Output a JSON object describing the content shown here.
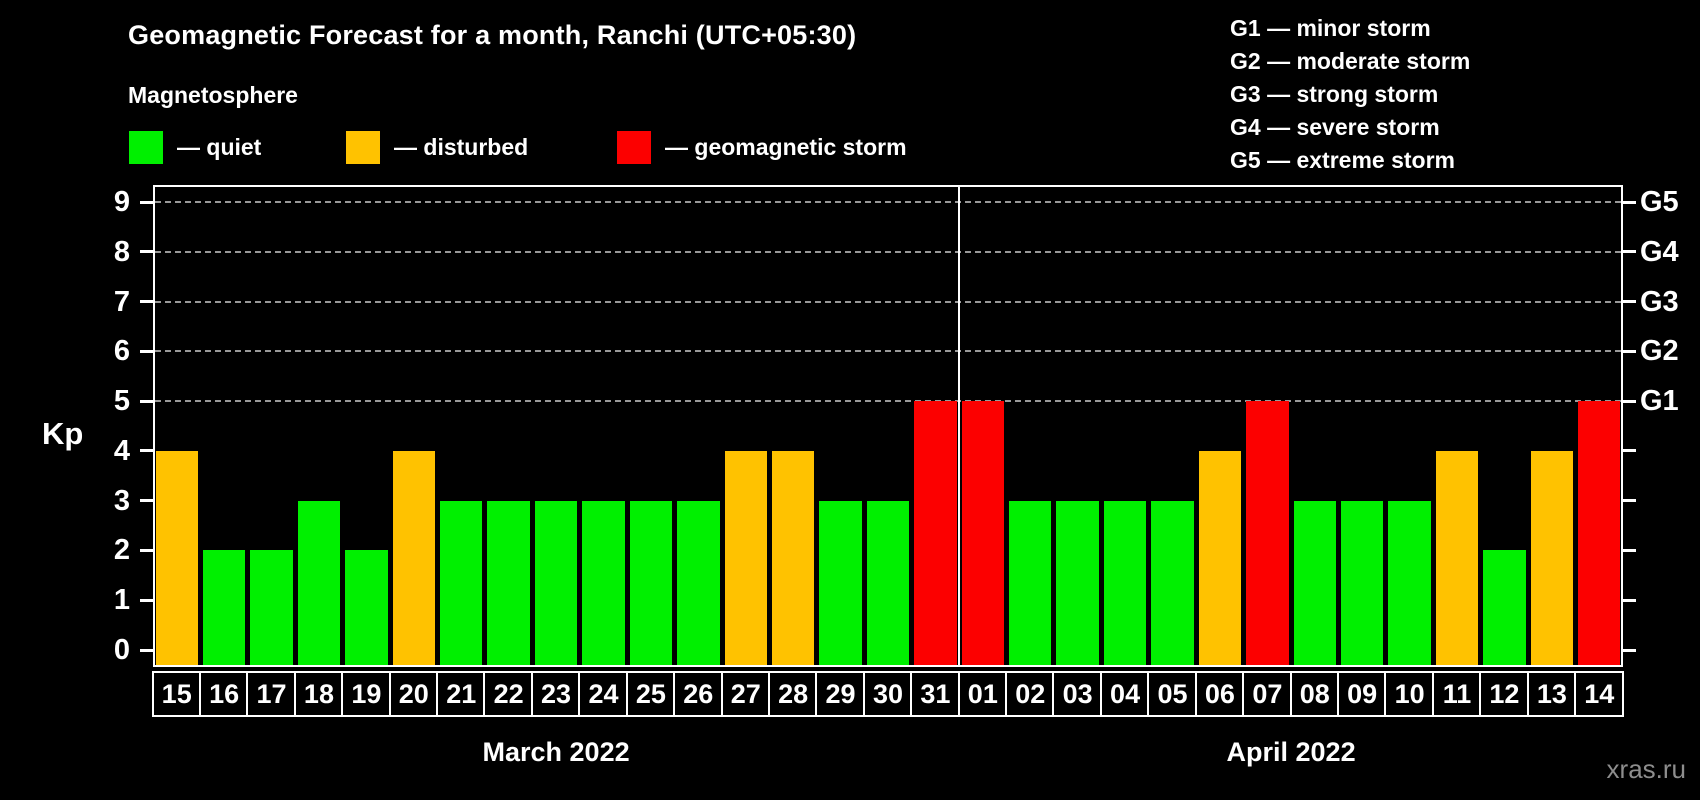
{
  "title": "Geomagnetic Forecast for a month, Ranchi (UTC+05:30)",
  "subtitle": "Magnetosphere",
  "legend": {
    "items": [
      {
        "name": "quiet",
        "color": "#00f000",
        "label": "— quiet"
      },
      {
        "name": "disturbed",
        "color": "#ffc200",
        "label": "— disturbed"
      },
      {
        "name": "storm",
        "color": "#fc0000",
        "label": "— geomagnetic storm"
      }
    ]
  },
  "g_legend": [
    "G1 — minor storm",
    "G2 — moderate storm",
    "G3 — strong storm",
    "G4 — severe storm",
    "G5 — extreme storm"
  ],
  "watermark": "xras.ru",
  "chart_data": {
    "type": "bar",
    "ylabel": "Kp",
    "ylim": [
      0,
      9
    ],
    "yticks": [
      0,
      1,
      2,
      3,
      4,
      5,
      6,
      7,
      8,
      9
    ],
    "grid": {
      "levels": [
        5,
        6,
        7,
        8,
        9
      ],
      "style": "dashed",
      "color": "#9a9a9a"
    },
    "right_axis": {
      "labels": [
        "G1",
        "G2",
        "G3",
        "G4",
        "G5"
      ],
      "levels": [
        5,
        6,
        7,
        8,
        9
      ]
    },
    "status_colors": {
      "quiet": "#00f000",
      "disturbed": "#ffc200",
      "storm": "#fc0000"
    },
    "months": [
      {
        "label": "March 2022",
        "days": [
          {
            "day": "15",
            "kp": 4,
            "status": "disturbed"
          },
          {
            "day": "16",
            "kp": 2,
            "status": "quiet"
          },
          {
            "day": "17",
            "kp": 2,
            "status": "quiet"
          },
          {
            "day": "18",
            "kp": 3,
            "status": "quiet"
          },
          {
            "day": "19",
            "kp": 2,
            "status": "quiet"
          },
          {
            "day": "20",
            "kp": 4,
            "status": "disturbed"
          },
          {
            "day": "21",
            "kp": 3,
            "status": "quiet"
          },
          {
            "day": "22",
            "kp": 3,
            "status": "quiet"
          },
          {
            "day": "23",
            "kp": 3,
            "status": "quiet"
          },
          {
            "day": "24",
            "kp": 3,
            "status": "quiet"
          },
          {
            "day": "25",
            "kp": 3,
            "status": "quiet"
          },
          {
            "day": "26",
            "kp": 3,
            "status": "quiet"
          },
          {
            "day": "27",
            "kp": 4,
            "status": "disturbed"
          },
          {
            "day": "28",
            "kp": 4,
            "status": "disturbed"
          },
          {
            "day": "29",
            "kp": 3,
            "status": "quiet"
          },
          {
            "day": "30",
            "kp": 3,
            "status": "quiet"
          },
          {
            "day": "31",
            "kp": 5,
            "status": "storm"
          }
        ]
      },
      {
        "label": "April 2022",
        "days": [
          {
            "day": "01",
            "kp": 5,
            "status": "storm"
          },
          {
            "day": "02",
            "kp": 3,
            "status": "quiet"
          },
          {
            "day": "03",
            "kp": 3,
            "status": "quiet"
          },
          {
            "day": "04",
            "kp": 3,
            "status": "quiet"
          },
          {
            "day": "05",
            "kp": 3,
            "status": "quiet"
          },
          {
            "day": "06",
            "kp": 4,
            "status": "disturbed"
          },
          {
            "day": "07",
            "kp": 5,
            "status": "storm"
          },
          {
            "day": "08",
            "kp": 3,
            "status": "quiet"
          },
          {
            "day": "09",
            "kp": 3,
            "status": "quiet"
          },
          {
            "day": "10",
            "kp": 3,
            "status": "quiet"
          },
          {
            "day": "11",
            "kp": 4,
            "status": "disturbed"
          },
          {
            "day": "12",
            "kp": 2,
            "status": "quiet"
          },
          {
            "day": "13",
            "kp": 4,
            "status": "disturbed"
          },
          {
            "day": "14",
            "kp": 5,
            "status": "storm"
          }
        ]
      }
    ]
  }
}
